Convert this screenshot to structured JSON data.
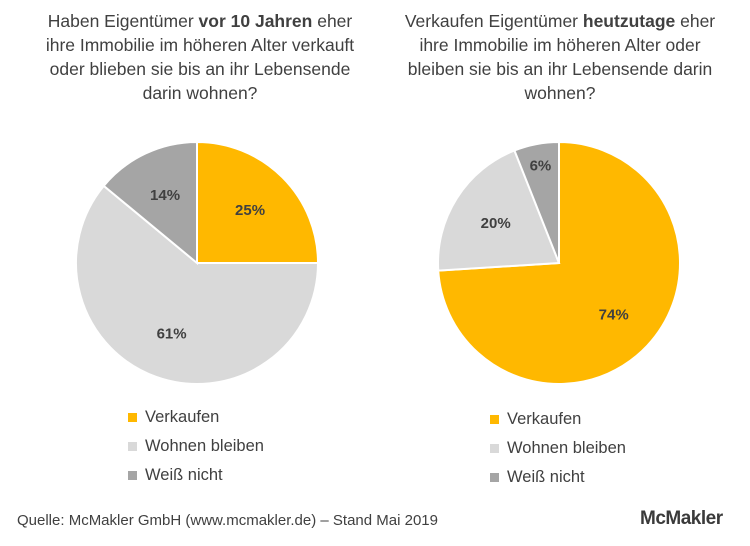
{
  "chart_data": [
    {
      "type": "pie",
      "title_parts": [
        {
          "text": "Haben Eigentümer ",
          "bold": false
        },
        {
          "text": "vor 10 Jahren",
          "bold": true
        },
        {
          "text": " eher ihre Immobilie im höheren Alter verkauft oder blieben sie bis an ihr Lebensende darin wohnen?",
          "bold": false
        }
      ],
      "slices": [
        {
          "name": "Verkaufen",
          "value": 25,
          "label": "25%",
          "color": "#FFB800"
        },
        {
          "name": "Wohnen bleiben",
          "value": 61,
          "label": "61%",
          "color": "#D9D9D9"
        },
        {
          "name": "Weiß nicht",
          "value": 14,
          "label": "14%",
          "color": "#A5A5A5"
        }
      ]
    },
    {
      "type": "pie",
      "title_parts": [
        {
          "text": "Verkaufen Eigentümer ",
          "bold": false
        },
        {
          "text": "heutzutage",
          "bold": true
        },
        {
          "text": " eher ihre Immobilie im höheren Alter oder bleiben sie bis an ihr Lebensende darin wohnen?",
          "bold": false
        }
      ],
      "slices": [
        {
          "name": "Verkaufen",
          "value": 74,
          "label": "74%",
          "color": "#FFB800"
        },
        {
          "name": "Wohnen bleiben",
          "value": 20,
          "label": "20%",
          "color": "#D9D9D9"
        },
        {
          "name": "Weiß nicht",
          "value": 6,
          "label": "6%",
          "color": "#A5A5A5"
        }
      ]
    }
  ],
  "footer": {
    "source": "Quelle: McMakler GmbH (www.mcmakler.de) – Stand Mai 2019",
    "logo": "McMakler"
  }
}
